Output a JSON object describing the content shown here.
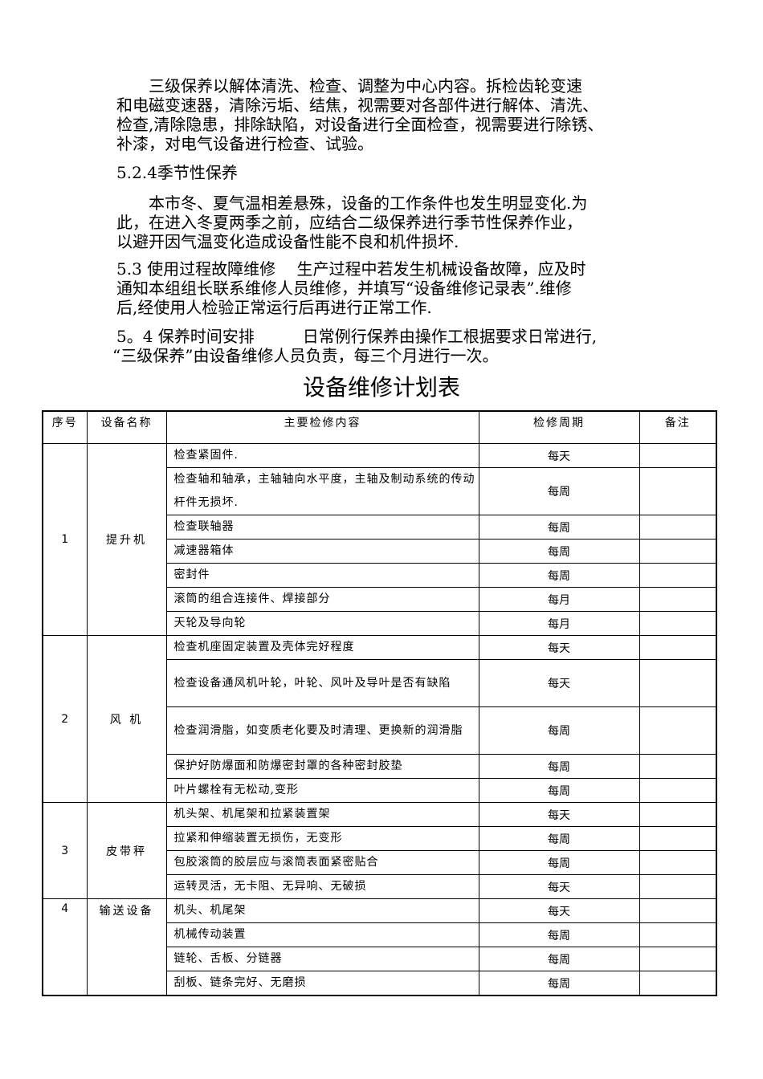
{
  "paragraphs": [
    {
      "id": "p1",
      "lines": [
        "　　三级保养以解体清洗、检查、调整为中心内容。拆检齿轮变速",
        "和电磁变速器，清除污垢、结焦，视需要对各部件进行解体、清洗、",
        "检查,清除隐患，排除缺陷，对设备进行全面检查，视需要进行除锈、",
        "补漆，对电气设备进行检查、试验。"
      ]
    },
    {
      "id": "h524",
      "lines": [
        "5.2.4季节性保养"
      ]
    },
    {
      "id": "p2",
      "lines": [
        "　　本市冬、夏气温相差悬殊，设备的工作条件也发生明显变化.为",
        "此，在进入冬夏两季之前，应结合二级保养进行季节性保养作业，",
        "以避开因气温变化造成设备性能不良和机件损坏."
      ]
    },
    {
      "id": "p53",
      "lines": [
        "5.3 使用过程故障维修　 生产过程中若发生机械设备故障，应及时",
        "通知本组组长联系维修人员维修，并填写“设备维修记录表”.维修",
        "后,经使用人检验正常运行后再进行正常工作."
      ]
    },
    {
      "id": "p54",
      "lines": [
        "5。4 保养时间安排　　　日常例行保养由操作工根据要求日常进行,",
        "“三级保养”由设备维修人员负责，每三个月进行一次。"
      ]
    }
  ],
  "table_title": "设备维修计划表",
  "table": {
    "headers": [
      "序号",
      "设备名称",
      "主要检修内容",
      "检修周期",
      "备注"
    ],
    "groups": [
      {
        "no": "1",
        "name": "提升机",
        "rows": [
          {
            "content": "检查紧固件.",
            "period": "每天",
            "note": ""
          },
          {
            "content": "检查轴和轴承，主轴轴向水平度，主轴及制动系统的传动杆件无损坏.",
            "period": "每周",
            "note": ""
          },
          {
            "content": "检查联轴器",
            "period": "每周",
            "note": ""
          },
          {
            "content": "减速器箱体",
            "period": "每周",
            "note": ""
          },
          {
            "content": "密封件",
            "period": "每周",
            "note": ""
          },
          {
            "content": "滚筒的组合连接件、焊接部分",
            "period": "每月",
            "note": ""
          },
          {
            "content": "天轮及导向轮",
            "period": "每月",
            "note": ""
          }
        ]
      },
      {
        "no": "2",
        "name": "风 机",
        "rows": [
          {
            "content": "检查机座固定装置及壳体完好程度",
            "period": "每天",
            "note": ""
          },
          {
            "content": "检查设备通风机叶轮，叶轮、风叶及导叶是否有缺陷",
            "period": "每天",
            "note": ""
          },
          {
            "content": "检查润滑脂，如变质老化要及时清理、更换新的润滑脂",
            "period": "每周",
            "note": ""
          },
          {
            "content": "保护好防爆面和防爆密封罩的各种密封胶垫",
            "period": "每周",
            "note": ""
          },
          {
            "content": "叶片螺栓有无松动,变形",
            "period": "每周",
            "note": ""
          }
        ]
      },
      {
        "no": "3",
        "name": "皮带秤",
        "rows": [
          {
            "content": "机头架、机尾架和拉紧装置架",
            "period": "每天",
            "note": ""
          },
          {
            "content": "拉紧和伸缩装置无损伤，无变形",
            "period": "每周",
            "note": ""
          },
          {
            "content": "包胶滚筒的胶层应与滚筒表面紧密贴合",
            "period": "每周",
            "note": ""
          },
          {
            "content": "运转灵活，无卡阻、无异响、无破损",
            "period": "每天",
            "note": ""
          }
        ]
      },
      {
        "no": "4",
        "name": "输送设备",
        "rows": [
          {
            "content": "机头、机尾架",
            "period": "每天",
            "note": ""
          },
          {
            "content": "机械传动装置",
            "period": "每周",
            "note": ""
          },
          {
            "content": "链轮、舌板、分链器",
            "period": "每周",
            "note": ""
          },
          {
            "content": "刮板、链条完好、无磨损",
            "period": "每周",
            "note": ""
          }
        ]
      }
    ]
  }
}
